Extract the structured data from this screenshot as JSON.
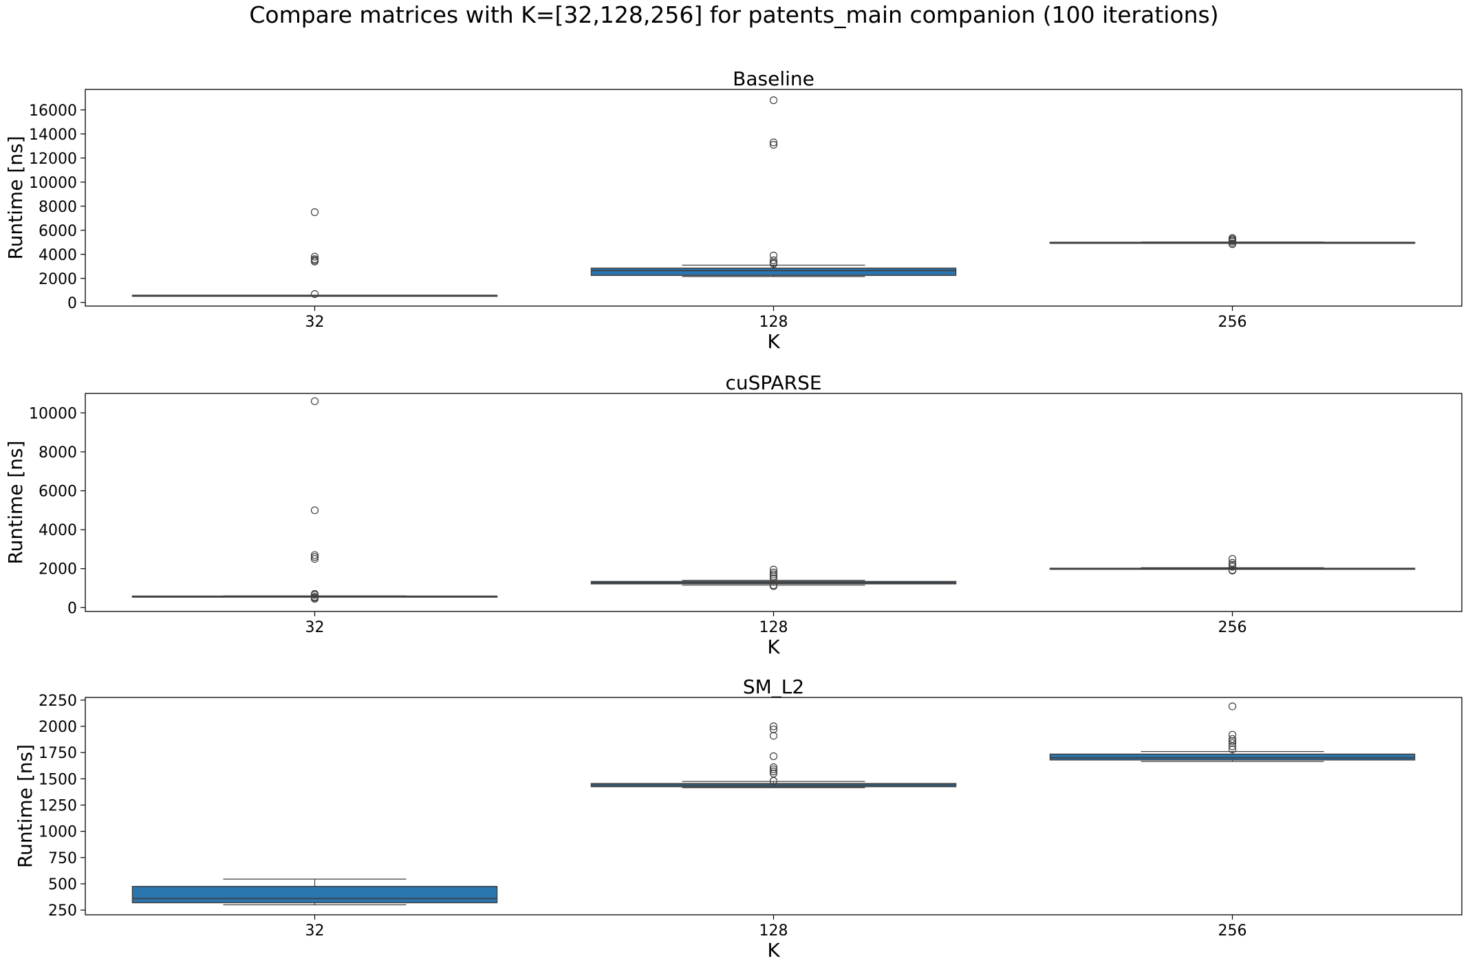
{
  "figure": {
    "title": "Compare matrices with K=[32,128,256] for patents_main companion (100 iterations)"
  },
  "colors": {
    "box_fill": "#2b76ae",
    "box_edge": "#3f3f3f",
    "whisker": "#3f3f3f",
    "axes": "#000000"
  },
  "chart_data": [
    {
      "type": "box",
      "title": "Baseline",
      "xlabel": "K",
      "ylabel": "Runtime [ns]",
      "categories": [
        "32",
        "128",
        "256"
      ],
      "ylim": [
        -300,
        17700
      ],
      "yticks": [
        0,
        2000,
        4000,
        6000,
        8000,
        10000,
        12000,
        14000,
        16000
      ],
      "boxes": [
        {
          "category": "32",
          "whislo": 580,
          "q1": 580,
          "median": 590,
          "q3": 600,
          "whishi": 610,
          "fliers": [
            700,
            3400,
            3500,
            3600,
            3800,
            7500
          ]
        },
        {
          "category": "128",
          "whislo": 2150,
          "q1": 2250,
          "median": 2650,
          "q3": 2850,
          "whishi": 3100,
          "fliers": [
            3200,
            3300,
            3500,
            3900,
            13100,
            13300,
            16800
          ]
        },
        {
          "category": "256",
          "whislo": 4930,
          "q1": 4950,
          "median": 4980,
          "q3": 5000,
          "whishi": 5020,
          "fliers": [
            4850,
            4900,
            5050,
            5150,
            5250,
            5350
          ]
        }
      ]
    },
    {
      "type": "box",
      "title": "cuSPARSE",
      "xlabel": "K",
      "ylabel": "Runtime [ns]",
      "categories": [
        "32",
        "128",
        "256"
      ],
      "ylim": [
        -200,
        11000
      ],
      "yticks": [
        0,
        2000,
        4000,
        6000,
        8000,
        10000
      ],
      "boxes": [
        {
          "category": "32",
          "whislo": 560,
          "q1": 570,
          "median": 580,
          "q3": 590,
          "whishi": 600,
          "fliers": [
            450,
            500,
            550,
            650,
            700,
            2500,
            2600,
            2700,
            5000,
            10600
          ]
        },
        {
          "category": "128",
          "whislo": 1150,
          "q1": 1220,
          "median": 1280,
          "q3": 1340,
          "whishi": 1400,
          "fliers": [
            1100,
            1150,
            1500,
            1600,
            1700,
            1800,
            1950
          ]
        },
        {
          "category": "256",
          "whislo": 1970,
          "q1": 1990,
          "median": 2000,
          "q3": 2020,
          "whishi": 2050,
          "fliers": [
            1900,
            1930,
            2100,
            2200,
            2300,
            2500
          ]
        }
      ]
    },
    {
      "type": "box",
      "title": "SM_L2",
      "xlabel": "K",
      "ylabel": "Runtime [ns]",
      "categories": [
        "32",
        "128",
        "256"
      ],
      "ylim": [
        205,
        2275
      ],
      "yticks": [
        250,
        500,
        750,
        1000,
        1250,
        1500,
        1750,
        2000,
        2250
      ],
      "boxes": [
        {
          "category": "32",
          "whislo": 300,
          "q1": 320,
          "median": 360,
          "q3": 475,
          "whishi": 545,
          "fliers": []
        },
        {
          "category": "128",
          "whislo": 1415,
          "q1": 1425,
          "median": 1440,
          "q3": 1455,
          "whishi": 1475,
          "fliers": [
            1480,
            1550,
            1570,
            1590,
            1610,
            1715,
            1910,
            1970,
            2000
          ]
        },
        {
          "category": "256",
          "whislo": 1665,
          "q1": 1680,
          "median": 1700,
          "q3": 1735,
          "whishi": 1760,
          "fliers": [
            1780,
            1810,
            1840,
            1860,
            1880,
            1920,
            2190
          ]
        }
      ]
    }
  ]
}
